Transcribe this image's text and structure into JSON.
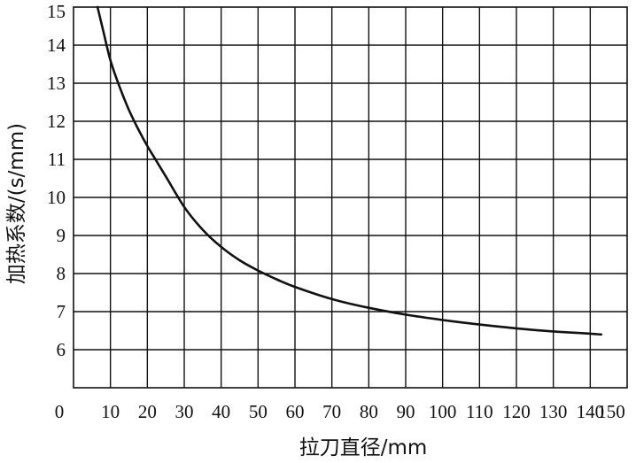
{
  "chart_data": {
    "type": "line",
    "title": "",
    "xlabel": "拉刀直径/mm",
    "ylabel": "加热系数/(s/mm)",
    "xlim": [
      0,
      150
    ],
    "ylim": [
      5,
      15
    ],
    "x_ticks": [
      0,
      10,
      20,
      30,
      40,
      50,
      60,
      70,
      80,
      90,
      100,
      110,
      120,
      130,
      140,
      150
    ],
    "x_tick_labels": [
      "0",
      "10",
      "20",
      "30",
      "40",
      "50",
      "60",
      "70",
      "80",
      "90",
      "100",
      "110",
      "120",
      "130",
      "140",
      "150"
    ],
    "y_ticks": [
      6,
      7,
      8,
      9,
      10,
      11,
      12,
      13,
      14,
      15
    ],
    "y_tick_labels": [
      "6",
      "7",
      "8",
      "9",
      "10",
      "11",
      "12",
      "13",
      "14",
      "15"
    ],
    "grid": true,
    "legend": "none",
    "series": [
      {
        "color": "#111111",
        "x": [
          6.5,
          8,
          10,
          12.5,
          15,
          17.5,
          20,
          22.5,
          25,
          30,
          35,
          40,
          45,
          50,
          55,
          60,
          70,
          80,
          90,
          100,
          110,
          120,
          130,
          140,
          143
        ],
        "y": [
          15.0,
          14.4,
          13.6,
          12.9,
          12.3,
          11.8,
          11.35,
          10.95,
          10.55,
          9.75,
          9.15,
          8.7,
          8.35,
          8.08,
          7.85,
          7.65,
          7.33,
          7.1,
          6.92,
          6.78,
          6.66,
          6.56,
          6.48,
          6.42,
          6.4
        ]
      }
    ]
  }
}
